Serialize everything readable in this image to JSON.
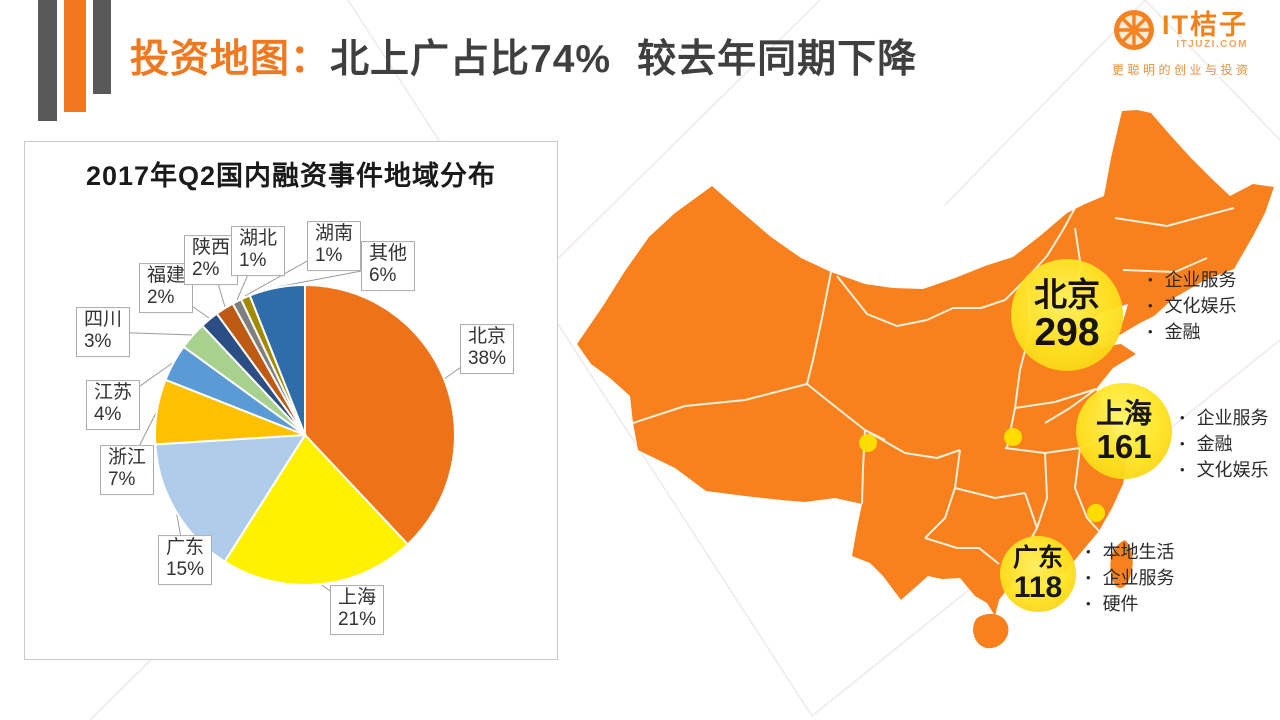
{
  "header": {
    "title_prefix": "投资地图",
    "title_separator": "：",
    "title_main": "北上广占比74%",
    "title_suffix": "较去年同期下降",
    "accent_color": "#F0781E"
  },
  "logo": {
    "brand": "IT桔子",
    "domain": "ITJUZI.COM",
    "tagline": "更聪明的创业与投资"
  },
  "chart_data": {
    "type": "pie",
    "title": "2017年Q2国内融资事件地域分布",
    "unit": "%",
    "categories": [
      "北京",
      "上海",
      "广东",
      "浙江",
      "江苏",
      "四川",
      "福建",
      "陕西",
      "湖北",
      "湖南",
      "其他"
    ],
    "values": [
      38,
      21,
      15,
      7,
      4,
      3,
      2,
      2,
      1,
      1,
      6
    ],
    "colors": [
      "#ED7218",
      "#FFF100",
      "#AFCCEA",
      "#FFC000",
      "#5B9BD5",
      "#A9D18E",
      "#2B4E85",
      "#BE5A14",
      "#7F7F7F",
      "#A28A00",
      "#2E6DA8"
    ],
    "start_angle": "12-o-clock",
    "direction": "clockwise",
    "legend_position": "none",
    "label_style": "callout-boxes"
  },
  "map": {
    "region": "中国",
    "land_color": "#F8801D",
    "border_color": "#FBEFD9",
    "bubble_color": "#FFE422",
    "city_dot_color": "#FFDD00",
    "bubbles": [
      {
        "name": "北京",
        "value": "298",
        "industries": [
          "企业服务",
          "文化娱乐",
          "金融"
        ]
      },
      {
        "name": "上海",
        "value": "161",
        "industries": [
          "企业服务",
          "金融",
          "文化娱乐"
        ]
      },
      {
        "name": "广东",
        "value": "118",
        "industries": [
          "本地生活",
          "企业服务",
          "硬件"
        ]
      }
    ]
  }
}
